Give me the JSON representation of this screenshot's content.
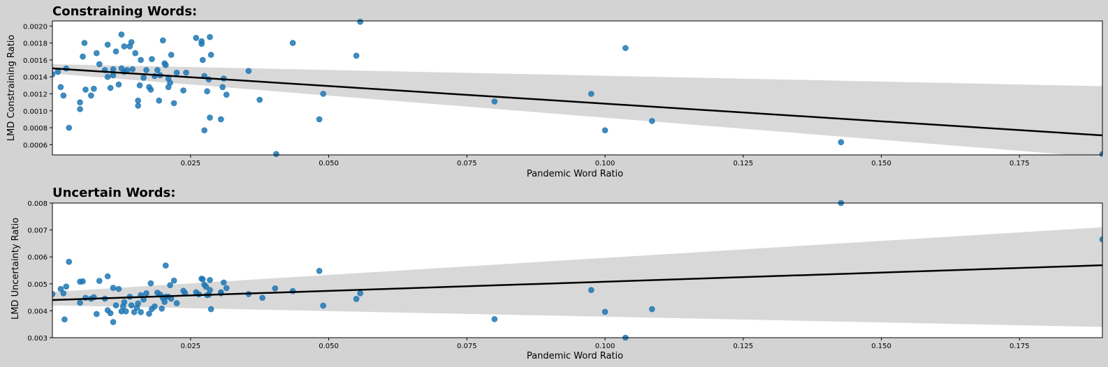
{
  "figure": {
    "background": "#d3d3d3",
    "plot_background": "#ffffff",
    "point_color": "#1f77b4",
    "line_color": "#000000",
    "band_color": "#d8d8d8"
  },
  "chart_data": [
    {
      "type": "scatter",
      "title": "Constraining Words:",
      "xlabel": "Pandemic Word Ratio",
      "ylabel": "LMD Constraining Ratio",
      "xlim": [
        0.0,
        0.19
      ],
      "ylim": [
        0.00048,
        0.00206
      ],
      "xticks": [
        0.025,
        0.05,
        0.075,
        0.1,
        0.125,
        0.15,
        0.175
      ],
      "xtick_labels": [
        "0.025",
        "0.050",
        "0.075",
        "0.100",
        "0.125",
        "0.150",
        "0.175"
      ],
      "yticks": [
        0.0006,
        0.0008,
        0.001,
        0.0012,
        0.0014,
        0.0016,
        0.0018,
        0.002
      ],
      "ytick_labels": [
        "0.0006",
        "0.0008",
        "0.0010",
        "0.0012",
        "0.0014",
        "0.0016",
        "0.0018",
        "0.0020"
      ],
      "grid": false,
      "regression": {
        "x": [
          0.0,
          0.19
        ],
        "y": [
          0.0015,
          0.00071
        ]
      },
      "confidence_band": {
        "x": [
          0.0,
          0.19
        ],
        "upper": [
          0.00155,
          0.00129
        ],
        "lower": [
          0.00144,
          0.00045
        ]
      },
      "points": [
        [
          0.0,
          0.00143
        ],
        [
          0.0015,
          0.00128
        ],
        [
          0.001,
          0.00146
        ],
        [
          0.002,
          0.00118
        ],
        [
          0.0025,
          0.0015
        ],
        [
          0.003,
          0.0008
        ],
        [
          0.005,
          0.0011
        ],
        [
          0.005,
          0.00102
        ],
        [
          0.0055,
          0.00164
        ],
        [
          0.0058,
          0.0018
        ],
        [
          0.006,
          0.00125
        ],
        [
          0.007,
          0.00118
        ],
        [
          0.0075,
          0.00126
        ],
        [
          0.008,
          0.00168
        ],
        [
          0.0085,
          0.00155
        ],
        [
          0.0095,
          0.00148
        ],
        [
          0.01,
          0.0014
        ],
        [
          0.01,
          0.00178
        ],
        [
          0.0105,
          0.00127
        ],
        [
          0.011,
          0.00149
        ],
        [
          0.011,
          0.00142
        ],
        [
          0.0115,
          0.0017
        ],
        [
          0.012,
          0.00131
        ],
        [
          0.0125,
          0.0019
        ],
        [
          0.0125,
          0.0015
        ],
        [
          0.013,
          0.00176
        ],
        [
          0.013,
          0.00146
        ],
        [
          0.0135,
          0.00148
        ],
        [
          0.014,
          0.00176
        ],
        [
          0.0143,
          0.00181
        ],
        [
          0.0145,
          0.00149
        ],
        [
          0.015,
          0.00168
        ],
        [
          0.0155,
          0.00112
        ],
        [
          0.0155,
          0.00106
        ],
        [
          0.0158,
          0.0013
        ],
        [
          0.016,
          0.0016
        ],
        [
          0.0165,
          0.00139
        ],
        [
          0.017,
          0.00148
        ],
        [
          0.0175,
          0.00128
        ],
        [
          0.0178,
          0.00125
        ],
        [
          0.018,
          0.00161
        ],
        [
          0.0185,
          0.00141
        ],
        [
          0.019,
          0.00148
        ],
        [
          0.0193,
          0.00112
        ],
        [
          0.0195,
          0.00142
        ],
        [
          0.02,
          0.00183
        ],
        [
          0.0203,
          0.00156
        ],
        [
          0.0205,
          0.00154
        ],
        [
          0.021,
          0.00138
        ],
        [
          0.021,
          0.00128
        ],
        [
          0.0213,
          0.00133
        ],
        [
          0.0215,
          0.00166
        ],
        [
          0.022,
          0.00109
        ],
        [
          0.0225,
          0.00145
        ],
        [
          0.0237,
          0.00124
        ],
        [
          0.0242,
          0.00145
        ],
        [
          0.026,
          0.00186
        ],
        [
          0.027,
          0.00182
        ],
        [
          0.027,
          0.00179
        ],
        [
          0.0272,
          0.0016
        ],
        [
          0.0275,
          0.00077
        ],
        [
          0.028,
          0.00123
        ],
        [
          0.0283,
          0.00137
        ],
        [
          0.0285,
          0.00187
        ],
        [
          0.0287,
          0.00166
        ],
        [
          0.0285,
          0.00092
        ],
        [
          0.0275,
          0.00141
        ],
        [
          0.0305,
          0.0009
        ],
        [
          0.0308,
          0.00128
        ],
        [
          0.031,
          0.00138
        ],
        [
          0.0315,
          0.00119
        ],
        [
          0.0355,
          0.00147
        ],
        [
          0.0375,
          0.00113
        ],
        [
          0.0405,
          0.00049
        ],
        [
          0.0435,
          0.0018
        ],
        [
          0.0483,
          0.0009
        ],
        [
          0.049,
          0.0012
        ],
        [
          0.055,
          0.00165
        ],
        [
          0.0557,
          0.00205
        ],
        [
          0.08,
          0.00111
        ],
        [
          0.0975,
          0.0012
        ],
        [
          0.1,
          0.00077
        ],
        [
          0.1037,
          0.00174
        ],
        [
          0.1085,
          0.00088
        ],
        [
          0.1427,
          0.00063
        ],
        [
          0.19,
          0.00049
        ]
      ]
    },
    {
      "type": "scatter",
      "title": "Uncertain Words:",
      "xlabel": "Pandemic Word Ratio",
      "ylabel": "LMD Uncertainty Ratio",
      "xlim": [
        0.0,
        0.19
      ],
      "ylim": [
        0.003,
        0.008
      ],
      "xticks": [
        0.025,
        0.05,
        0.075,
        0.1,
        0.125,
        0.15,
        0.175
      ],
      "xtick_labels": [
        "0.025",
        "0.050",
        "0.075",
        "0.100",
        "0.125",
        "0.150",
        "0.175"
      ],
      "yticks": [
        0.003,
        0.004,
        0.005,
        0.006,
        0.007,
        0.008
      ],
      "ytick_labels": [
        "0.003",
        "0.004",
        "0.005",
        "0.006",
        "0.007",
        "0.008"
      ],
      "grid": false,
      "regression": {
        "x": [
          0.0,
          0.19
        ],
        "y": [
          0.0044,
          0.00569
        ]
      },
      "confidence_band": {
        "x": [
          0.0,
          0.19
        ],
        "upper": [
          0.0047,
          0.0071
        ],
        "lower": [
          0.0042,
          0.0034
        ]
      },
      "points": [
        [
          0.0,
          0.00462
        ],
        [
          0.0015,
          0.00481
        ],
        [
          0.002,
          0.00465
        ],
        [
          0.0022,
          0.00368
        ],
        [
          0.0025,
          0.0049
        ],
        [
          0.003,
          0.00582
        ],
        [
          0.005,
          0.00508
        ],
        [
          0.005,
          0.0043
        ],
        [
          0.0055,
          0.00509
        ],
        [
          0.006,
          0.00448
        ],
        [
          0.007,
          0.00445
        ],
        [
          0.0075,
          0.0045
        ],
        [
          0.008,
          0.00388
        ],
        [
          0.0085,
          0.00511
        ],
        [
          0.0095,
          0.00445
        ],
        [
          0.01,
          0.00528
        ],
        [
          0.01,
          0.00402
        ],
        [
          0.0105,
          0.00391
        ],
        [
          0.011,
          0.00358
        ],
        [
          0.011,
          0.00485
        ],
        [
          0.0115,
          0.0042
        ],
        [
          0.012,
          0.00481
        ],
        [
          0.0125,
          0.00398
        ],
        [
          0.0128,
          0.00416
        ],
        [
          0.013,
          0.00432
        ],
        [
          0.0133,
          0.00398
        ],
        [
          0.014,
          0.00452
        ],
        [
          0.0143,
          0.0042
        ],
        [
          0.0148,
          0.00395
        ],
        [
          0.0153,
          0.00412
        ],
        [
          0.0155,
          0.00427
        ],
        [
          0.016,
          0.00458
        ],
        [
          0.016,
          0.00395
        ],
        [
          0.0165,
          0.00442
        ],
        [
          0.017,
          0.00465
        ],
        [
          0.0175,
          0.00389
        ],
        [
          0.0178,
          0.00502
        ],
        [
          0.018,
          0.00407
        ],
        [
          0.0185,
          0.00416
        ],
        [
          0.019,
          0.00467
        ],
        [
          0.0195,
          0.0046
        ],
        [
          0.0198,
          0.00408
        ],
        [
          0.02,
          0.00447
        ],
        [
          0.0203,
          0.00433
        ],
        [
          0.0205,
          0.00452
        ],
        [
          0.0205,
          0.00568
        ],
        [
          0.021,
          0.00452
        ],
        [
          0.0213,
          0.00495
        ],
        [
          0.0215,
          0.00445
        ],
        [
          0.022,
          0.00512
        ],
        [
          0.0225,
          0.00428
        ],
        [
          0.0237,
          0.00474
        ],
        [
          0.024,
          0.00466
        ],
        [
          0.026,
          0.00469
        ],
        [
          0.0265,
          0.00461
        ],
        [
          0.027,
          0.00519
        ],
        [
          0.0272,
          0.00517
        ],
        [
          0.0275,
          0.00497
        ],
        [
          0.0278,
          0.00489
        ],
        [
          0.028,
          0.00458
        ],
        [
          0.0283,
          0.0046
        ],
        [
          0.0285,
          0.00514
        ],
        [
          0.0285,
          0.00477
        ],
        [
          0.0287,
          0.00406
        ],
        [
          0.0305,
          0.00469
        ],
        [
          0.0305,
          0.00465
        ],
        [
          0.031,
          0.00505
        ],
        [
          0.0315,
          0.00484
        ],
        [
          0.0355,
          0.00462
        ],
        [
          0.038,
          0.00448
        ],
        [
          0.0403,
          0.00483
        ],
        [
          0.0435,
          0.00473
        ],
        [
          0.0483,
          0.00548
        ],
        [
          0.049,
          0.00419
        ],
        [
          0.055,
          0.00444
        ],
        [
          0.0557,
          0.00465
        ],
        [
          0.08,
          0.00369
        ],
        [
          0.0975,
          0.00477
        ],
        [
          0.1,
          0.00396
        ],
        [
          0.1037,
          0.003
        ],
        [
          0.1085,
          0.00406
        ],
        [
          0.1427,
          0.008
        ],
        [
          0.19,
          0.00665
        ]
      ]
    }
  ]
}
